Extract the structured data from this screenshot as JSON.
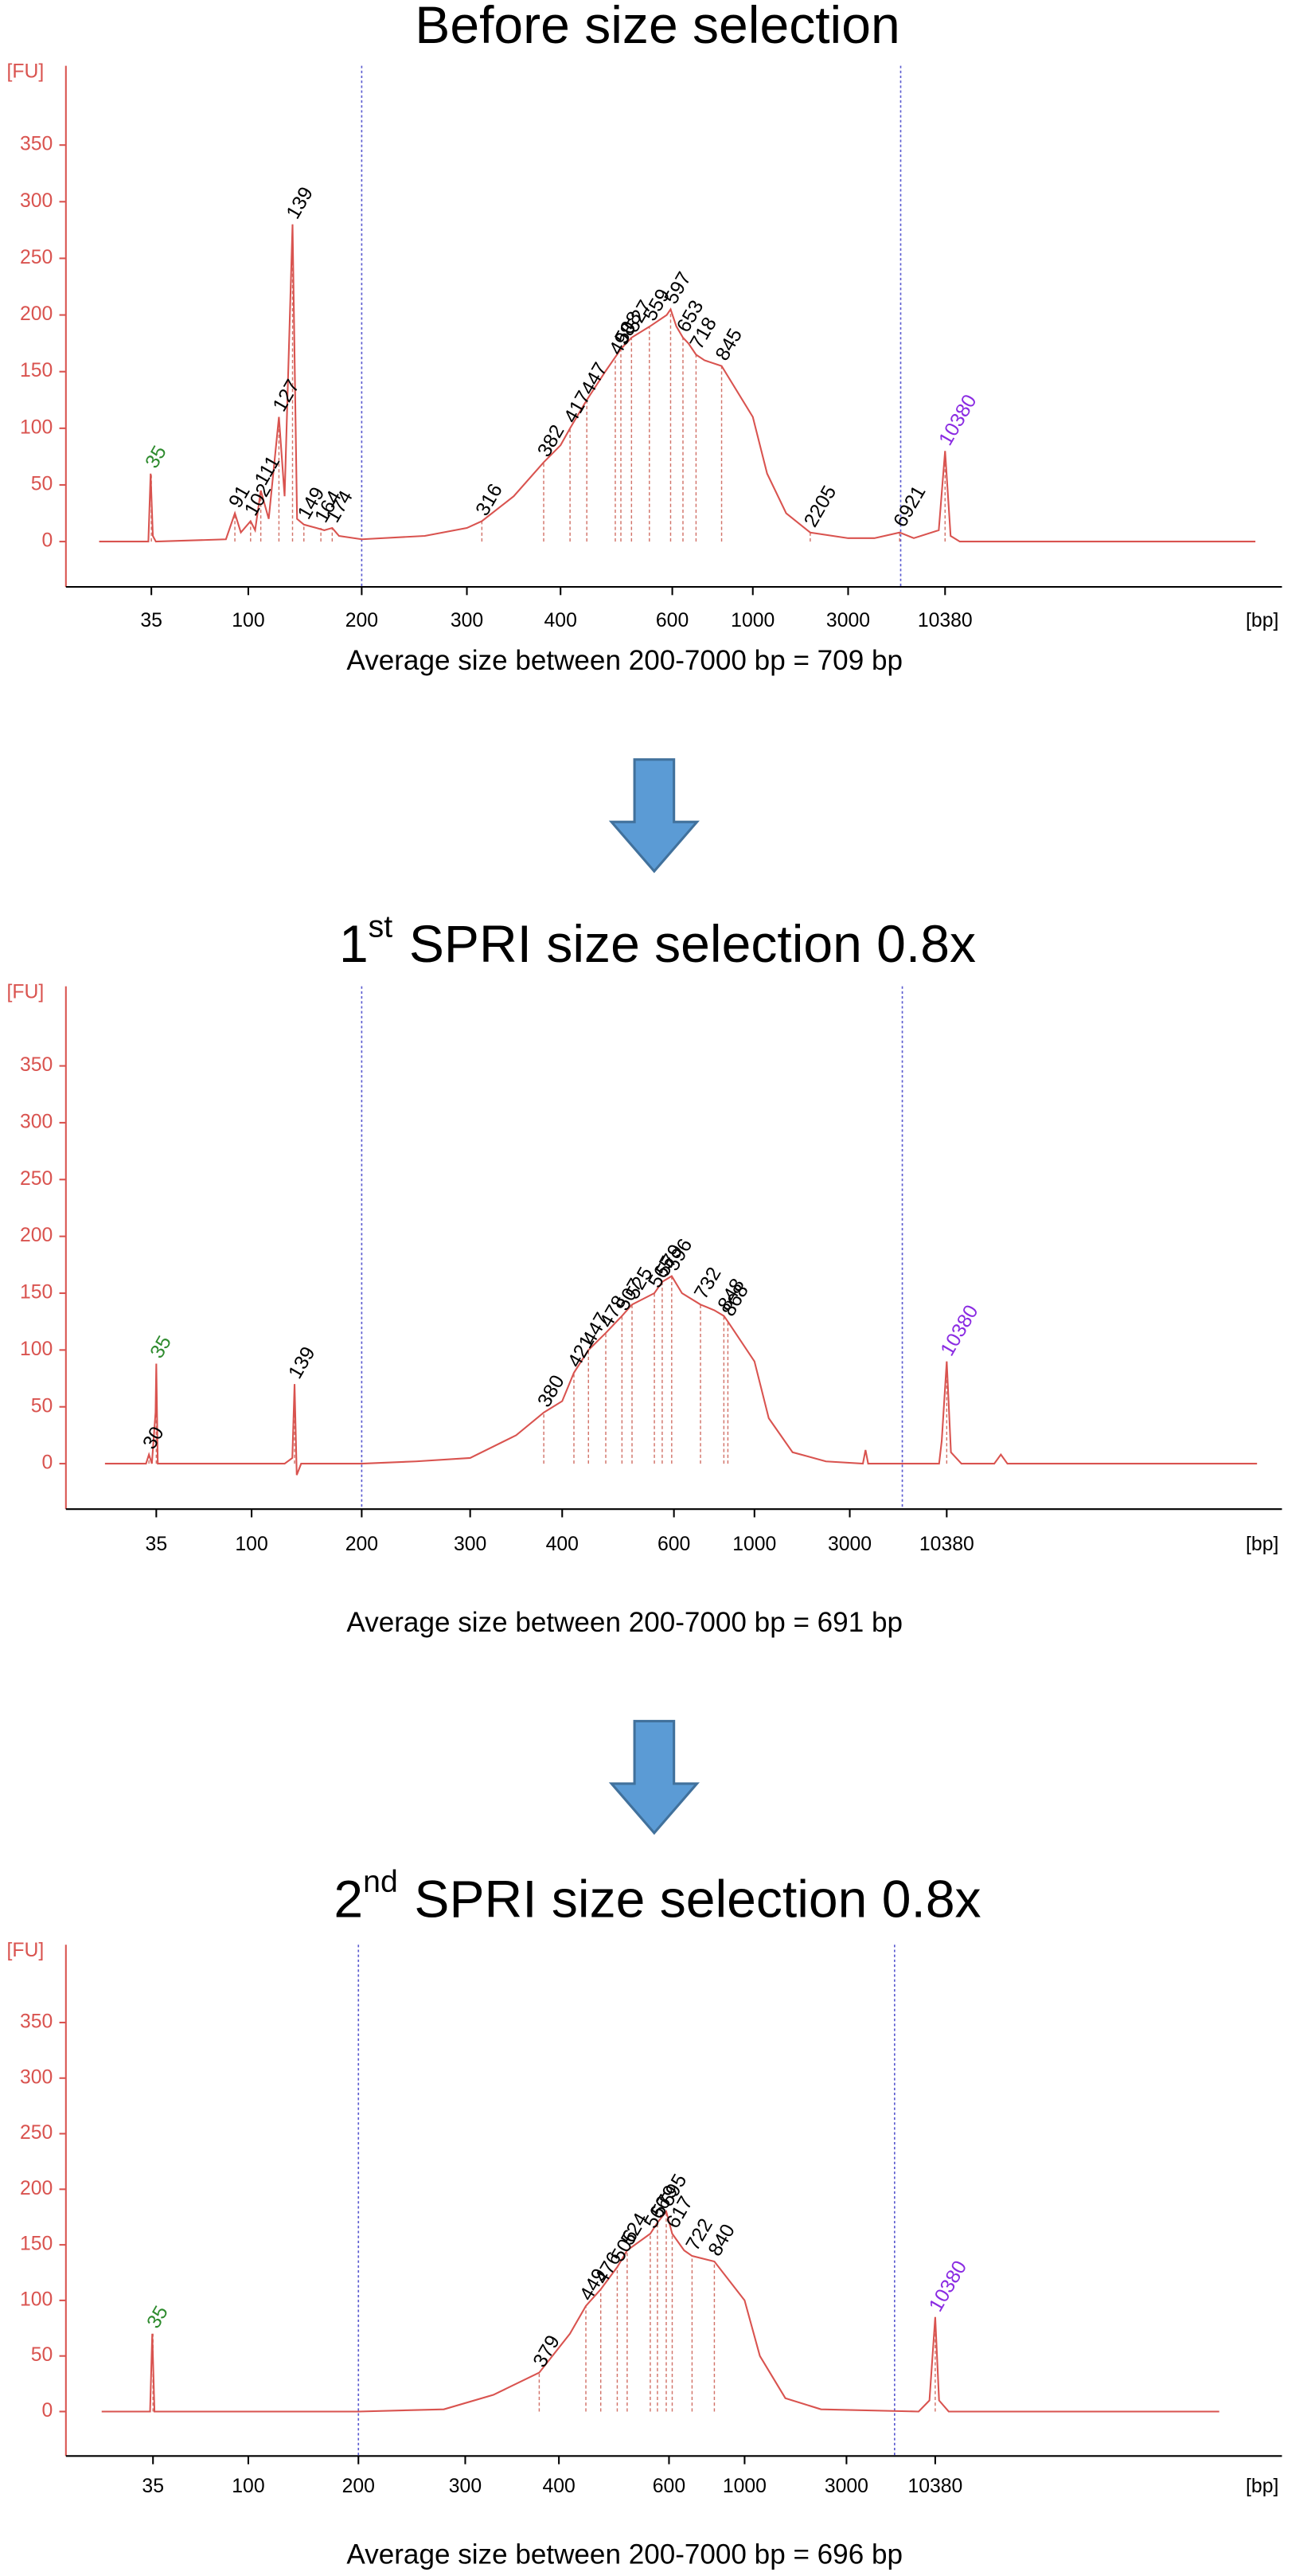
{
  "chart_data": [
    {
      "type": "line",
      "title": "Before size selection",
      "y_label": "[FU]",
      "x_unit": "[bp]",
      "caption": "Average size between 200-7000 bp = 709 bp",
      "color": "#d9534f",
      "region": [
        200,
        7000
      ],
      "xticks": [
        35,
        100,
        200,
        300,
        400,
        600,
        1000,
        3000,
        10380
      ],
      "ylim": [
        -40,
        420
      ],
      "yticks": [
        0,
        50,
        100,
        150,
        200,
        250,
        300,
        350
      ],
      "x": [
        0,
        33,
        34.5,
        36,
        38,
        85,
        91,
        95,
        102,
        106,
        111,
        118,
        127,
        132,
        139,
        143,
        149,
        160,
        167,
        174,
        180,
        200,
        260,
        300,
        316,
        350,
        382,
        400,
        417,
        447,
        480,
        508,
        527,
        560,
        590,
        597,
        620,
        653,
        680,
        718,
        760,
        845,
        1000,
        1300,
        1700,
        2205,
        3000,
        5000,
        6921,
        8000,
        9900,
        10380,
        10800,
        11500,
        34000
      ],
      "values": [
        0,
        0,
        60,
        5,
        0,
        2,
        25,
        8,
        18,
        10,
        45,
        20,
        110,
        40,
        280,
        20,
        15,
        12,
        10,
        12,
        5,
        2,
        5,
        12,
        18,
        40,
        70,
        85,
        100,
        125,
        150,
        170,
        180,
        190,
        200,
        205,
        190,
        180,
        175,
        165,
        160,
        155,
        110,
        60,
        25,
        8,
        3,
        3,
        8,
        3,
        10,
        80,
        5,
        0,
        0
      ],
      "peaks": [
        {
          "size": 35,
          "fu": 60,
          "color": "#2e8b2e"
        },
        {
          "size": 91,
          "fu": 25
        },
        {
          "size": 102,
          "fu": 18
        },
        {
          "size": 111,
          "fu": 45
        },
        {
          "size": 127,
          "fu": 110
        },
        {
          "size": 139,
          "fu": 280
        },
        {
          "size": 149,
          "fu": 15
        },
        {
          "size": 164,
          "fu": 12
        },
        {
          "size": 174,
          "fu": 12
        },
        {
          "size": 316,
          "fu": 18
        },
        {
          "size": 382,
          "fu": 70
        },
        {
          "size": 417,
          "fu": 100
        },
        {
          "size": 447,
          "fu": 125
        },
        {
          "size": 498,
          "fu": 160
        },
        {
          "size": 508,
          "fu": 170
        },
        {
          "size": 527,
          "fu": 180
        },
        {
          "size": 559,
          "fu": 190
        },
        {
          "size": 597,
          "fu": 205
        },
        {
          "size": 653,
          "fu": 180
        },
        {
          "size": 718,
          "fu": 165
        },
        {
          "size": 845,
          "fu": 155
        },
        {
          "size": 2205,
          "fu": 8
        },
        {
          "size": 6921,
          "fu": 8
        },
        {
          "size": 10380,
          "fu": 80,
          "color": "#8a2be2"
        }
      ]
    },
    {
      "type": "line",
      "title": "1",
      "title_sup": "st",
      "title_rest": "SPRI size selection 0.8x",
      "y_label": "[FU]",
      "x_unit": "[bp]",
      "caption": "Average size between 200-7000 bp = 691 bp",
      "color": "#d9534f",
      "region": [
        200,
        7000
      ],
      "xticks": [
        35,
        100,
        200,
        300,
        400,
        600,
        1000,
        3000,
        10380
      ],
      "ylim": [
        -40,
        420
      ],
      "yticks": [
        0,
        50,
        100,
        150,
        200,
        250,
        300,
        350
      ],
      "x": [
        0,
        28,
        30,
        32,
        34.5,
        35,
        36,
        130,
        137,
        139,
        141,
        145,
        200,
        250,
        300,
        350,
        380,
        400,
        421,
        447,
        478,
        507,
        525,
        565,
        579,
        596,
        640,
        732,
        800,
        848,
        868,
        1000,
        1300,
        1800,
        2500,
        4000,
        4200,
        4400,
        9800,
        10000,
        10380,
        10700,
        11500,
        14000,
        14500,
        15000,
        34000
      ],
      "values": [
        0,
        0,
        8,
        0,
        45,
        88,
        0,
        0,
        5,
        70,
        -10,
        0,
        0,
        2,
        5,
        25,
        45,
        55,
        80,
        100,
        115,
        130,
        140,
        150,
        160,
        165,
        150,
        140,
        135,
        130,
        125,
        90,
        40,
        10,
        2,
        0,
        12,
        0,
        0,
        20,
        90,
        10,
        0,
        0,
        8,
        0,
        0
      ],
      "peaks": [
        {
          "size": 30,
          "fu": 8
        },
        {
          "size": 35,
          "fu": 88,
          "color": "#2e8b2e"
        },
        {
          "size": 139,
          "fu": 70
        },
        {
          "size": 380,
          "fu": 45
        },
        {
          "size": 421,
          "fu": 80
        },
        {
          "size": 447,
          "fu": 100
        },
        {
          "size": 478,
          "fu": 115
        },
        {
          "size": 507,
          "fu": 130
        },
        {
          "size": 525,
          "fu": 140
        },
        {
          "size": 565,
          "fu": 150
        },
        {
          "size": 579,
          "fu": 160
        },
        {
          "size": 596,
          "fu": 165
        },
        {
          "size": 732,
          "fu": 140
        },
        {
          "size": 848,
          "fu": 130
        },
        {
          "size": 868,
          "fu": 125
        },
        {
          "size": 10380,
          "fu": 90,
          "color": "#8a2be2"
        }
      ]
    },
    {
      "type": "line",
      "title": "2",
      "title_sup": "nd",
      "title_rest": "SPRI size selection 0.8x",
      "y_label": "[FU]",
      "x_unit": "[bp]",
      "caption": "Average size between 200-7000 bp = 696 bp",
      "color": "#d9534f",
      "region": [
        200,
        7000
      ],
      "xticks": [
        35,
        100,
        200,
        300,
        400,
        600,
        1000,
        3000,
        10380
      ],
      "ylim": [
        -40,
        420
      ],
      "yticks": [
        0,
        50,
        100,
        150,
        200,
        250,
        300,
        350
      ],
      "x": [
        0,
        33,
        34.5,
        36,
        200,
        280,
        330,
        379,
        420,
        449,
        476,
        506,
        524,
        566,
        579,
        595,
        617,
        680,
        722,
        840,
        1000,
        1300,
        1800,
        2500,
        9000,
        9900,
        10380,
        10700,
        11500,
        34000
      ],
      "values": [
        0,
        0,
        70,
        0,
        0,
        2,
        15,
        35,
        70,
        95,
        110,
        130,
        145,
        160,
        170,
        180,
        160,
        145,
        140,
        135,
        100,
        50,
        12,
        2,
        0,
        10,
        85,
        10,
        0,
        0
      ],
      "peaks": [
        {
          "size": 35,
          "fu": 70,
          "color": "#2e8b2e"
        },
        {
          "size": 379,
          "fu": 35
        },
        {
          "size": 449,
          "fu": 95
        },
        {
          "size": 476,
          "fu": 110
        },
        {
          "size": 506,
          "fu": 130
        },
        {
          "size": 524,
          "fu": 145
        },
        {
          "size": 566,
          "fu": 160
        },
        {
          "size": 579,
          "fu": 170
        },
        {
          "size": 595,
          "fu": 180
        },
        {
          "size": 617,
          "fu": 160
        },
        {
          "size": 722,
          "fu": 140
        },
        {
          "size": 840,
          "fu": 135
        },
        {
          "size": 10380,
          "fu": 85,
          "color": "#8a2be2"
        }
      ]
    }
  ]
}
